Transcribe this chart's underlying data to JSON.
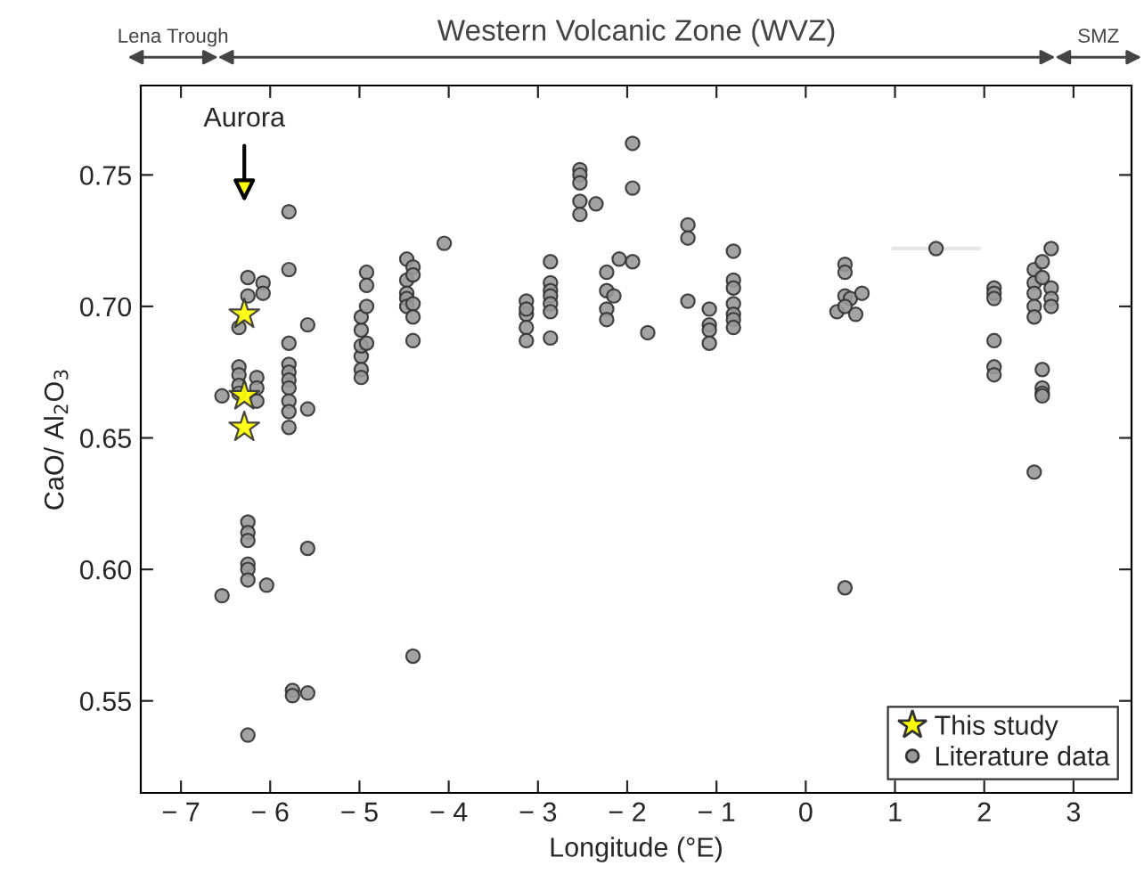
{
  "chart_data": {
    "type": "scatter",
    "xlabel": "Longitude (°E)",
    "ylabel": "CaO/ Al$_{2}$O$_{3}$",
    "xlim": [
      -7.45,
      3.65
    ],
    "ylim": [
      0.515,
      0.784
    ],
    "xticks": [
      {
        "value": -7,
        "label": "− 7"
      },
      {
        "value": -6,
        "label": "− 6"
      },
      {
        "value": -5,
        "label": "− 5"
      },
      {
        "value": -4,
        "label": "− 4"
      },
      {
        "value": -3,
        "label": "− 3"
      },
      {
        "value": -2,
        "label": "− 2"
      },
      {
        "value": -1,
        "label": "− 1"
      },
      0,
      1,
      2,
      3
    ],
    "yticks": [
      {
        "value": 0.55,
        "label": "0.55"
      },
      {
        "value": 0.6,
        "label": "0.60"
      },
      {
        "value": 0.65,
        "label": "0.65"
      },
      {
        "value": 0.7,
        "label": "0.70"
      },
      {
        "value": 0.75,
        "label": "0.75"
      }
    ],
    "grid": false,
    "legend": "bottom right",
    "annotations": [
      "Lena Trough",
      "Western Volcanic Zone (WVZ)",
      "SMZ",
      "Aurora"
    ],
    "series": [
      {
        "name": "Literature data",
        "color": "#999999",
        "marker": "circle",
        "x": [
          -6.54,
          -6.54,
          -6.25,
          -6.25,
          -6.35,
          -6.35,
          -6.35,
          -6.35,
          -6.35,
          -6.25,
          -6.25,
          -6.25,
          -6.25,
          -6.25,
          -6.25,
          -6.25,
          -6.15,
          -6.15,
          -6.15,
          -6.08,
          -6.08,
          -6.04,
          -5.79,
          -5.79,
          -5.79,
          -5.79,
          -5.79,
          -5.79,
          -5.79,
          -5.79,
          -5.79,
          -5.79,
          -5.75,
          -5.75,
          -5.58,
          -5.58,
          -5.58,
          -5.58,
          -4.98,
          -4.98,
          -4.98,
          -4.98,
          -4.98,
          -4.98,
          -4.92,
          -4.92,
          -4.92,
          -4.92,
          -4.47,
          -4.47,
          -4.47,
          -4.47,
          -4.47,
          -4.4,
          -4.4,
          -4.4,
          -4.4,
          -4.4,
          -4.4,
          -4.05,
          -3.13,
          -3.13,
          -3.13,
          -3.13,
          -3.13,
          -2.86,
          -2.86,
          -2.86,
          -2.86,
          -2.86,
          -2.86,
          -2.86,
          -2.53,
          -2.53,
          -2.53,
          -2.53,
          -2.53,
          -2.35,
          -2.23,
          -2.23,
          -2.23,
          -2.23,
          -2.15,
          -2.09,
          -1.94,
          -1.94,
          -1.94,
          -1.77,
          -1.32,
          -1.32,
          -1.32,
          -1.08,
          -1.08,
          -1.08,
          -1.08,
          -0.81,
          -0.81,
          -0.81,
          -0.81,
          -0.81,
          -0.81,
          -0.81,
          0.35,
          0.44,
          0.44,
          0.44,
          0.5,
          0.44,
          0.56,
          0.63,
          0.44,
          1.46,
          2.11,
          2.11,
          2.11,
          2.11,
          2.11,
          2.11,
          2.56,
          2.56,
          2.56,
          2.56,
          2.56,
          2.56,
          2.65,
          2.65,
          2.65,
          2.65,
          2.65,
          2.65,
          2.75,
          2.75,
          2.75,
          2.75
        ],
        "values": [
          0.666,
          0.59,
          0.711,
          0.704,
          0.692,
          0.677,
          0.674,
          0.67,
          0.667,
          0.618,
          0.614,
          0.611,
          0.602,
          0.6,
          0.596,
          0.537,
          0.673,
          0.669,
          0.664,
          0.709,
          0.705,
          0.594,
          0.736,
          0.714,
          0.686,
          0.678,
          0.675,
          0.672,
          0.669,
          0.664,
          0.66,
          0.654,
          0.554,
          0.552,
          0.553,
          0.693,
          0.661,
          0.608,
          0.681,
          0.691,
          0.696,
          0.685,
          0.676,
          0.673,
          0.713,
          0.708,
          0.7,
          0.686,
          0.718,
          0.71,
          0.705,
          0.703,
          0.7,
          0.715,
          0.712,
          0.701,
          0.696,
          0.687,
          0.567,
          0.724,
          0.702,
          0.697,
          0.692,
          0.687,
          0.699,
          0.717,
          0.709,
          0.706,
          0.704,
          0.701,
          0.698,
          0.688,
          0.752,
          0.75,
          0.747,
          0.74,
          0.735,
          0.739,
          0.713,
          0.706,
          0.699,
          0.695,
          0.704,
          0.718,
          0.762,
          0.745,
          0.717,
          0.69,
          0.731,
          0.726,
          0.702,
          0.699,
          0.693,
          0.691,
          0.686,
          0.721,
          0.71,
          0.707,
          0.701,
          0.697,
          0.695,
          0.692,
          0.698,
          0.716,
          0.713,
          0.704,
          0.703,
          0.7,
          0.697,
          0.705,
          0.593,
          0.722,
          0.707,
          0.705,
          0.703,
          0.687,
          0.677,
          0.674,
          0.714,
          0.709,
          0.705,
          0.7,
          0.696,
          0.637,
          0.717,
          0.711,
          0.676,
          0.669,
          0.667,
          0.666,
          0.722,
          0.707,
          0.703,
          0.7
        ],
        "xerrors": [
          null,
          null,
          null,
          null,
          null,
          null,
          null,
          null,
          null,
          null,
          null,
          null,
          null,
          null,
          null,
          null,
          null,
          null,
          null,
          null,
          null,
          null,
          null,
          null,
          null,
          null,
          null,
          null,
          null,
          null,
          null,
          null,
          null,
          null,
          null,
          null,
          null,
          null,
          null,
          null,
          null,
          null,
          null,
          null,
          null,
          null,
          null,
          null,
          null,
          null,
          null,
          null,
          null,
          null,
          null,
          null,
          null,
          null,
          null,
          null,
          null,
          null,
          null,
          null,
          null,
          null,
          null,
          null,
          null,
          null,
          null,
          null,
          null,
          null,
          null,
          null,
          null,
          null,
          null,
          null,
          null,
          null,
          null,
          null,
          null,
          null,
          null,
          null,
          null,
          null,
          null,
          null,
          null,
          null,
          null,
          null,
          null,
          null,
          null,
          null,
          null,
          null,
          null,
          null,
          null,
          null,
          null,
          null,
          null,
          null,
          null,
          0.5,
          null,
          null,
          null,
          null,
          null,
          null,
          null,
          null,
          null,
          null,
          null,
          null,
          null,
          null,
          null,
          null,
          null,
          null,
          null,
          null,
          null,
          null
        ]
      },
      {
        "name": "This study",
        "color": "#ffff00",
        "marker": "star",
        "x": [
          -6.29,
          -6.29,
          -6.29
        ],
        "values": [
          0.697,
          0.666,
          0.654
        ]
      }
    ]
  }
}
